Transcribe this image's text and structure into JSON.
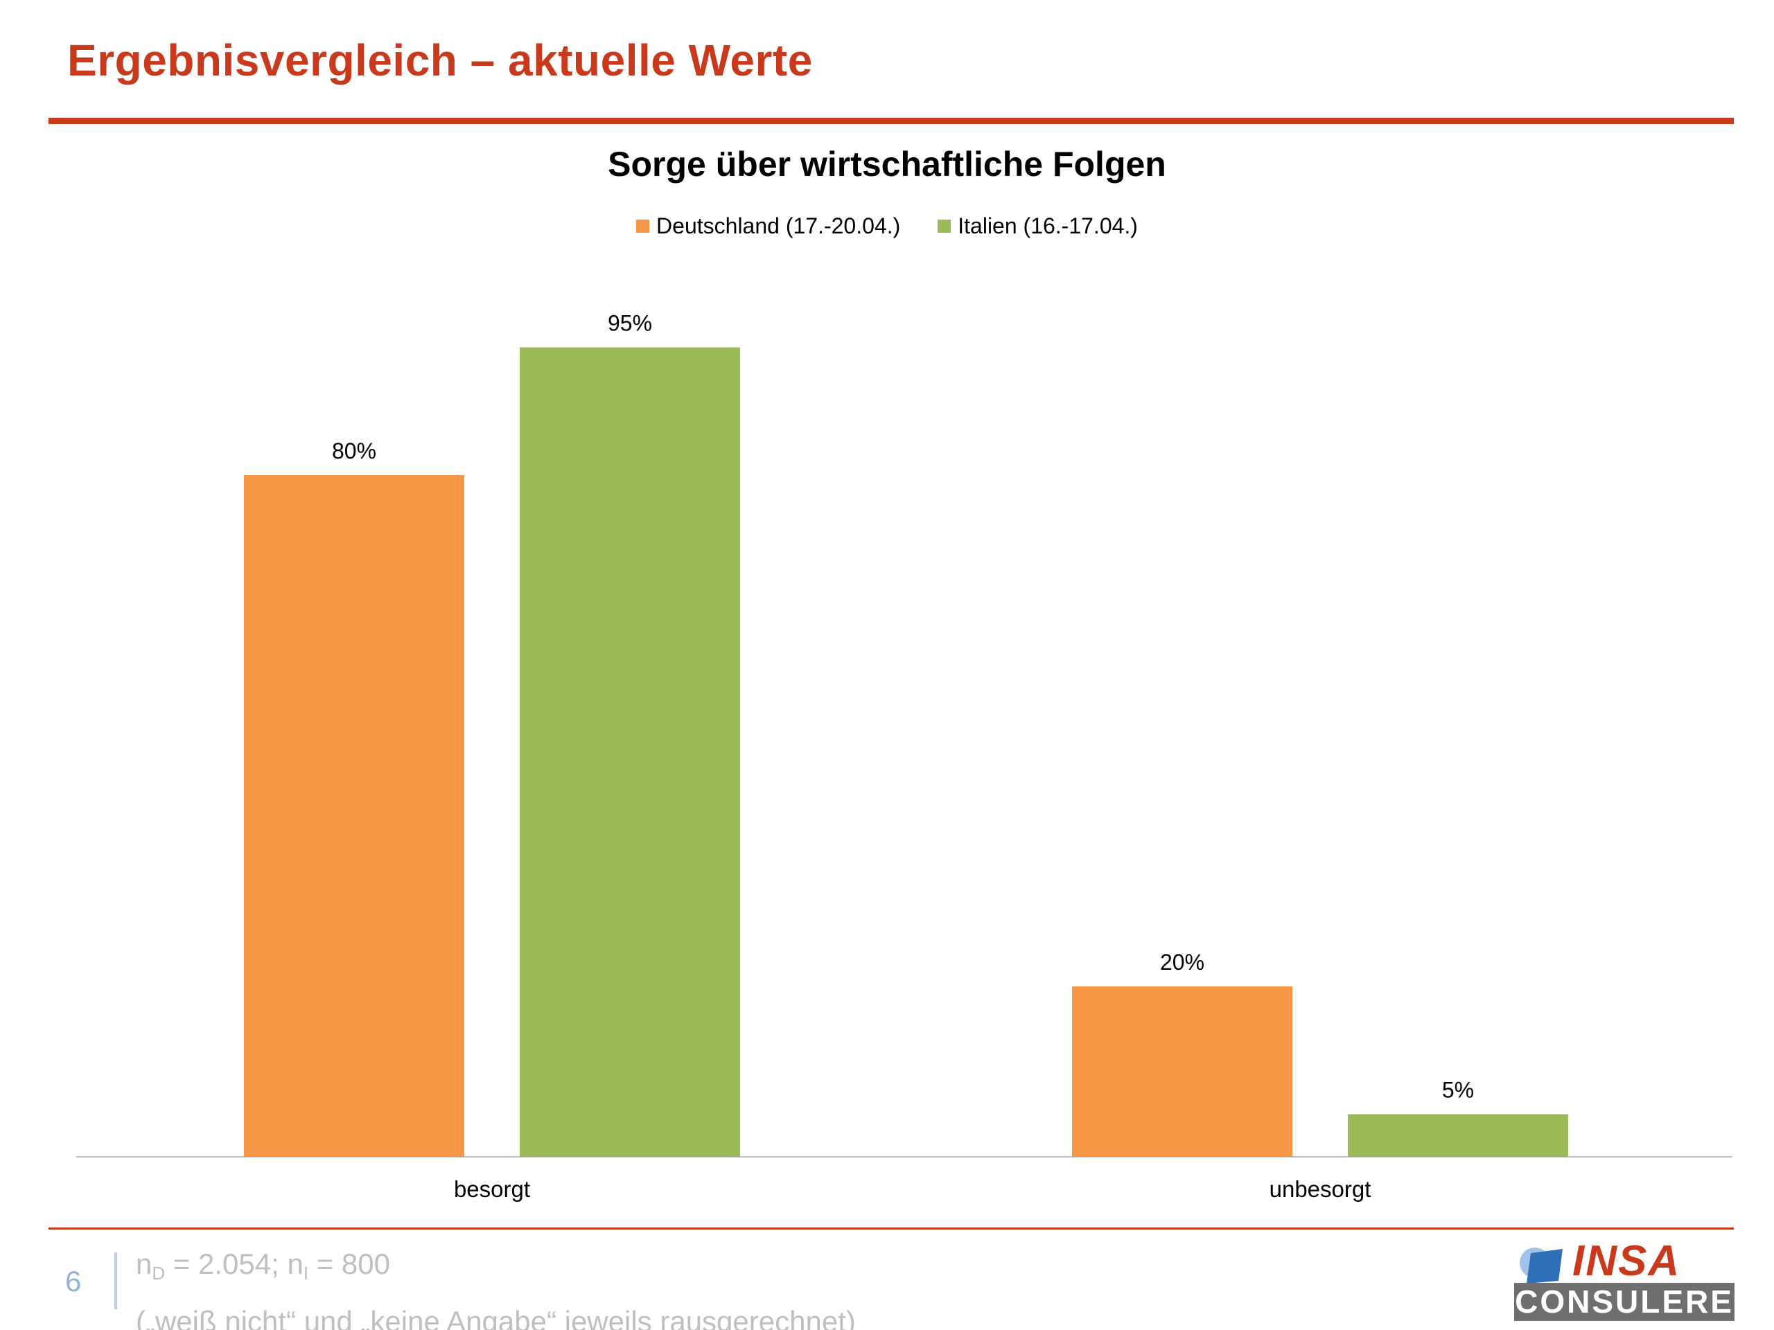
{
  "slide": {
    "title": "Ergebnisvergleich – aktuelle Werte",
    "page_number": "6",
    "note_prefix": "n",
    "note_sub_d": "D",
    "note_mid": " = 2.054; n",
    "note_sub_i": "I",
    "note_end": " = 800",
    "note_line2": "(„weiß nicht“ und „keine Angabe“ jeweils rausgerechnet)",
    "logo_top": "INSA",
    "logo_bottom": "CONSULERE"
  },
  "colors": {
    "accent": "#c9391c",
    "deutschland": "#f79646",
    "italien": "#9bbb59",
    "axis": "#bfbfbf",
    "logo_blue": "#2f6fb8",
    "logo_gray": "#6f6f6f"
  },
  "chart_data": {
    "type": "bar",
    "title": "Sorge über wirtschaftliche Folgen",
    "categories": [
      "besorgt",
      "unbesorgt"
    ],
    "series": [
      {
        "name": "Deutschland (17.-20.04.)",
        "values": [
          80,
          20
        ],
        "labels": [
          "80%",
          "20%"
        ],
        "color": "#f79646"
      },
      {
        "name": "Italien (16.-17.04.)",
        "values": [
          95,
          5
        ],
        "labels": [
          "95%",
          "5%"
        ],
        "color": "#9bbb59"
      }
    ],
    "ylim": [
      0,
      100
    ],
    "unit": "%",
    "legend": "top-center",
    "grid": false
  }
}
